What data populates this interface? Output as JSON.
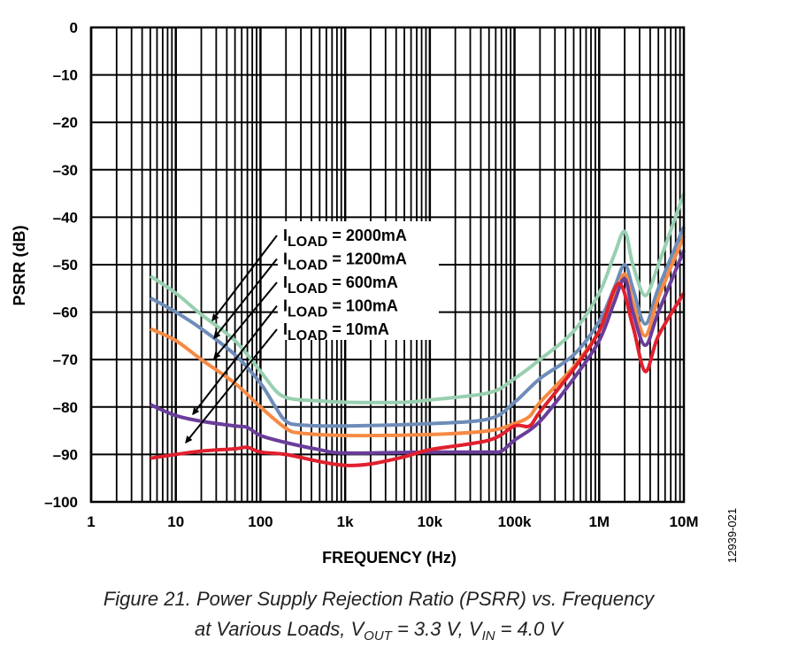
{
  "chart_data": {
    "type": "line",
    "title": "",
    "xlabel": "FREQUENCY (Hz)",
    "ylabel": "PSRR (dB)",
    "xscale": "log",
    "xlim": [
      1,
      10000000
    ],
    "ylim": [
      -100,
      0
    ],
    "grid": true,
    "x_ticks": [
      1,
      10,
      100,
      1000,
      10000,
      100000,
      1000000,
      10000000
    ],
    "x_tick_labels": [
      "1",
      "10",
      "100",
      "1k",
      "10k",
      "100k",
      "1M",
      "10M"
    ],
    "y_ticks": [
      0,
      -10,
      -20,
      -30,
      -40,
      -50,
      -60,
      -70,
      -80,
      -90,
      -100
    ],
    "y_tick_labels": [
      "0",
      "–10",
      "–20",
      "–30",
      "–40",
      "–50",
      "–60",
      "–70",
      "–80",
      "–90",
      "–100"
    ],
    "series": [
      {
        "name": "ILOAD = 2000mA",
        "label_main": "I",
        "label_sub": "LOAD",
        "label_rest": " = 2000mA",
        "color": "#98cfb0",
        "x": [
          5,
          10,
          20,
          50,
          100,
          150,
          200,
          300,
          500,
          1000,
          5000,
          10000,
          50000,
          100000,
          200000,
          500000,
          1000000,
          1500000,
          2000000,
          2500000,
          3500000,
          5000000,
          10000000
        ],
        "y": [
          -52.4,
          -56,
          -60.5,
          -66,
          -72.5,
          -76.5,
          -78,
          -78.5,
          -78.7,
          -79,
          -79,
          -78.5,
          -77,
          -74,
          -70,
          -64,
          -56,
          -48,
          -43,
          -50,
          -56.5,
          -50,
          -35
        ]
      },
      {
        "name": "ILOAD = 1200mA",
        "label_main": "I",
        "label_sub": "LOAD",
        "label_rest": " = 1200mA",
        "color": "#6e8cb8",
        "x": [
          5,
          10,
          20,
          50,
          100,
          150,
          200,
          300,
          1000,
          10000,
          50000,
          100000,
          200000,
          500000,
          1000000,
          1500000,
          2000000,
          2500000,
          3500000,
          5000000,
          10000000
        ],
        "y": [
          -57,
          -60,
          -63.5,
          -69,
          -75,
          -80,
          -83,
          -83.8,
          -84,
          -83.5,
          -82.5,
          -79,
          -74,
          -69,
          -62,
          -55,
          -50,
          -55,
          -62.5,
          -55,
          -42
        ]
      },
      {
        "name": "ILOAD = 600mA",
        "label_main": "I",
        "label_sub": "LOAD",
        "label_rest": " = 600mA",
        "color": "#f68a44",
        "x": [
          5,
          10,
          20,
          50,
          100,
          200,
          300,
          1000,
          10000,
          50000,
          100000,
          150000,
          200000,
          500000,
          1000000,
          1500000,
          2000000,
          2500000,
          3500000,
          5000000,
          10000000
        ],
        "y": [
          -63.5,
          -66,
          -70,
          -75,
          -80,
          -84.5,
          -85.5,
          -86,
          -85.8,
          -85,
          -83.5,
          -82,
          -79,
          -71.5,
          -64,
          -57,
          -52,
          -58,
          -65,
          -57,
          -44
        ]
      },
      {
        "name": "ILOAD = 100mA",
        "label_main": "I",
        "label_sub": "LOAD",
        "label_rest": " = 100mA",
        "color": "#6a3d9a",
        "x": [
          5,
          10,
          20,
          50,
          70,
          100,
          200,
          500,
          1000,
          10000,
          50000,
          70000,
          100000,
          200000,
          500000,
          1000000,
          1500000,
          2000000,
          2500000,
          3500000,
          5000000,
          10000000
        ],
        "y": [
          -79.5,
          -81.8,
          -83,
          -84,
          -84.3,
          -86,
          -87.5,
          -89,
          -89.7,
          -89.5,
          -89.5,
          -89.3,
          -87,
          -83,
          -74,
          -66,
          -58,
          -53,
          -60,
          -67,
          -60,
          -47
        ]
      },
      {
        "name": "ILOAD = 10mA",
        "label_main": "I",
        "label_sub": "LOAD",
        "label_rest": " = 10mA",
        "color": "#e0202e",
        "x": [
          5,
          10,
          20,
          50,
          70,
          100,
          200,
          500,
          1000,
          2000,
          5000,
          10000,
          50000,
          100000,
          150000,
          200000,
          500000,
          1000000,
          1700000,
          2500000,
          3500000,
          5000000,
          10000000
        ],
        "y": [
          -90.8,
          -90,
          -89.3,
          -88.8,
          -88.5,
          -89.5,
          -90,
          -91.5,
          -92.3,
          -92,
          -90.5,
          -89,
          -87,
          -84,
          -84,
          -81,
          -72,
          -64,
          -54,
          -63,
          -72.5,
          -65,
          -56
        ]
      }
    ],
    "watermark_id": "12939-021",
    "caption_line1": "Figure 21. Power Supply Rejection Ratio (PSRR) vs. Frequency",
    "caption_line2_a": "at Various Loads, V",
    "caption_line2_sub1": "OUT",
    "caption_line2_b": " = 3.3 V, V",
    "caption_line2_sub2": "IN",
    "caption_line2_c": " = 4.0 V"
  }
}
